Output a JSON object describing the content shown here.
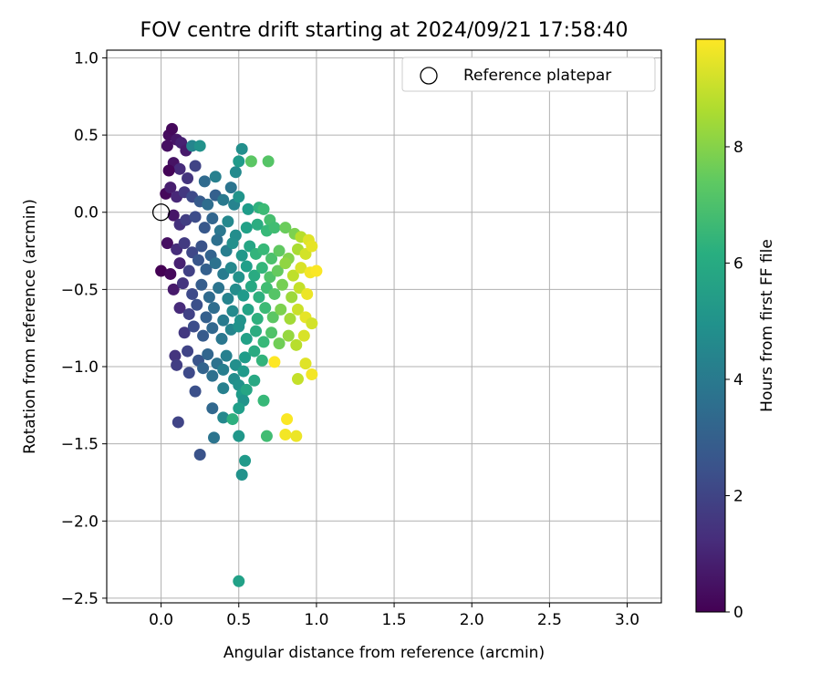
{
  "chart_data": {
    "type": "scatter",
    "title": "FOV centre drift starting at 2024/09/21 17:58:40",
    "xlabel": "Angular distance from reference (arcmin)",
    "ylabel": "Rotation from reference (arcmin)",
    "xlim": [
      -0.35,
      3.22
    ],
    "ylim": [
      -2.53,
      1.05
    ],
    "xticks": [
      "0.0",
      "0.5",
      "1.0",
      "1.5",
      "2.0",
      "2.5",
      "3.0"
    ],
    "yticks": [
      "1.0",
      "0.5",
      "0.0",
      "−0.5",
      "−1.0",
      "−1.5",
      "−2.0",
      "−2.5"
    ],
    "grid": true,
    "legend": {
      "position": "top-right",
      "entries": [
        "Reference platepar"
      ]
    },
    "reference_point": {
      "x": 0.0,
      "y": 0.0,
      "marker": "open-circle"
    },
    "colorbar": {
      "label": "Hours from first FF file",
      "range": [
        0,
        9.85
      ],
      "ticks": [
        "0",
        "2",
        "4",
        "6",
        "8"
      ],
      "colormap": "viridis"
    },
    "points": [
      [
        0.05,
        0.5,
        0.3
      ],
      [
        0.07,
        0.54,
        0.2
      ],
      [
        0.1,
        0.47,
        0.6
      ],
      [
        0.04,
        0.43,
        0.4
      ],
      [
        0.13,
        0.45,
        0.9
      ],
      [
        0.16,
        0.4,
        0.7
      ],
      [
        0.2,
        0.43,
        4.5
      ],
      [
        0.25,
        0.43,
        5.0
      ],
      [
        0.08,
        0.32,
        0.5
      ],
      [
        0.12,
        0.28,
        1.2
      ],
      [
        0.05,
        0.27,
        0.1
      ],
      [
        0.17,
        0.22,
        1.5
      ],
      [
        0.22,
        0.3,
        2.0
      ],
      [
        0.28,
        0.2,
        3.4
      ],
      [
        0.35,
        0.23,
        4.3
      ],
      [
        0.45,
        0.16,
        3.8
      ],
      [
        0.48,
        0.26,
        4.7
      ],
      [
        0.5,
        0.33,
        5.3
      ],
      [
        0.52,
        0.41,
        4.9
      ],
      [
        0.58,
        0.33,
        7.3
      ],
      [
        0.69,
        0.33,
        7.2
      ],
      [
        0.03,
        0.12,
        0.2
      ],
      [
        0.06,
        0.16,
        0.8
      ],
      [
        0.1,
        0.1,
        1.1
      ],
      [
        0.15,
        0.13,
        1.6
      ],
      [
        0.2,
        0.1,
        2.2
      ],
      [
        0.25,
        0.07,
        2.8
      ],
      [
        0.3,
        0.05,
        3.5
      ],
      [
        0.35,
        0.11,
        3.0
      ],
      [
        0.4,
        0.08,
        4.0
      ],
      [
        0.47,
        0.05,
        4.4
      ],
      [
        0.5,
        0.1,
        5.1
      ],
      [
        0.56,
        0.02,
        5.4
      ],
      [
        0.63,
        0.03,
        6.3
      ],
      [
        0.66,
        0.02,
        6.7
      ],
      [
        0.7,
        -0.05,
        6.9
      ],
      [
        0.08,
        -0.02,
        0.6
      ],
      [
        0.12,
        -0.08,
        1.4
      ],
      [
        0.16,
        -0.05,
        1.8
      ],
      [
        0.22,
        -0.03,
        2.3
      ],
      [
        0.28,
        -0.1,
        2.7
      ],
      [
        0.33,
        -0.04,
        3.2
      ],
      [
        0.38,
        -0.12,
        3.9
      ],
      [
        0.43,
        -0.06,
        4.6
      ],
      [
        0.48,
        -0.15,
        4.8
      ],
      [
        0.55,
        -0.1,
        5.6
      ],
      [
        0.62,
        -0.08,
        6.1
      ],
      [
        0.68,
        -0.12,
        6.6
      ],
      [
        0.73,
        -0.1,
        6.8
      ],
      [
        0.8,
        -0.1,
        7.6
      ],
      [
        0.86,
        -0.14,
        7.9
      ],
      [
        0.9,
        -0.16,
        8.8
      ],
      [
        0.95,
        -0.18,
        9.4
      ],
      [
        0.04,
        -0.2,
        0.4
      ],
      [
        0.1,
        -0.24,
        1.3
      ],
      [
        0.15,
        -0.2,
        1.7
      ],
      [
        0.2,
        -0.26,
        2.1
      ],
      [
        0.26,
        -0.22,
        2.5
      ],
      [
        0.32,
        -0.28,
        3.1
      ],
      [
        0.36,
        -0.18,
        3.6
      ],
      [
        0.42,
        -0.25,
        4.2
      ],
      [
        0.46,
        -0.2,
        4.9
      ],
      [
        0.52,
        -0.28,
        5.2
      ],
      [
        0.57,
        -0.22,
        5.8
      ],
      [
        0.61,
        -0.27,
        6.4
      ],
      [
        0.66,
        -0.24,
        6.6
      ],
      [
        0.71,
        -0.3,
        7.0
      ],
      [
        0.76,
        -0.25,
        7.4
      ],
      [
        0.82,
        -0.3,
        8.0
      ],
      [
        0.88,
        -0.24,
        8.6
      ],
      [
        0.93,
        -0.27,
        9.2
      ],
      [
        0.97,
        -0.22,
        9.5
      ],
      [
        0.0,
        -0.38,
        0.0
      ],
      [
        0.06,
        -0.4,
        0.2
      ],
      [
        0.12,
        -0.33,
        0.9
      ],
      [
        0.18,
        -0.38,
        1.9
      ],
      [
        0.24,
        -0.31,
        2.6
      ],
      [
        0.29,
        -0.37,
        3.0
      ],
      [
        0.35,
        -0.33,
        3.7
      ],
      [
        0.4,
        -0.4,
        4.1
      ],
      [
        0.45,
        -0.36,
        4.6
      ],
      [
        0.5,
        -0.42,
        5.0
      ],
      [
        0.55,
        -0.35,
        5.5
      ],
      [
        0.6,
        -0.41,
        6.0
      ],
      [
        0.65,
        -0.36,
        6.5
      ],
      [
        0.7,
        -0.42,
        7.1
      ],
      [
        0.75,
        -0.38,
        7.5
      ],
      [
        0.8,
        -0.33,
        8.2
      ],
      [
        0.85,
        -0.41,
        8.9
      ],
      [
        0.9,
        -0.36,
        9.3
      ],
      [
        0.96,
        -0.39,
        9.7
      ],
      [
        1.0,
        -0.38,
        9.8
      ],
      [
        0.08,
        -0.5,
        0.7
      ],
      [
        0.14,
        -0.46,
        1.5
      ],
      [
        0.2,
        -0.53,
        2.2
      ],
      [
        0.26,
        -0.47,
        2.9
      ],
      [
        0.31,
        -0.55,
        3.4
      ],
      [
        0.37,
        -0.49,
        3.8
      ],
      [
        0.43,
        -0.56,
        4.4
      ],
      [
        0.48,
        -0.5,
        4.8
      ],
      [
        0.53,
        -0.54,
        5.3
      ],
      [
        0.58,
        -0.48,
        5.9
      ],
      [
        0.63,
        -0.55,
        6.2
      ],
      [
        0.68,
        -0.49,
        6.8
      ],
      [
        0.73,
        -0.53,
        7.2
      ],
      [
        0.78,
        -0.47,
        7.8
      ],
      [
        0.84,
        -0.55,
        8.4
      ],
      [
        0.89,
        -0.49,
        9.0
      ],
      [
        0.94,
        -0.53,
        9.6
      ],
      [
        0.12,
        -0.62,
        1.2
      ],
      [
        0.18,
        -0.66,
        1.9
      ],
      [
        0.23,
        -0.6,
        2.4
      ],
      [
        0.29,
        -0.68,
        3.0
      ],
      [
        0.34,
        -0.62,
        3.5
      ],
      [
        0.4,
        -0.7,
        4.1
      ],
      [
        0.46,
        -0.64,
        4.7
      ],
      [
        0.51,
        -0.7,
        5.1
      ],
      [
        0.56,
        -0.63,
        5.7
      ],
      [
        0.62,
        -0.69,
        6.2
      ],
      [
        0.67,
        -0.62,
        6.7
      ],
      [
        0.72,
        -0.68,
        7.3
      ],
      [
        0.77,
        -0.63,
        7.9
      ],
      [
        0.83,
        -0.69,
        8.5
      ],
      [
        0.88,
        -0.63,
        9.1
      ],
      [
        0.93,
        -0.68,
        9.5
      ],
      [
        0.97,
        -0.72,
        9.2
      ],
      [
        0.15,
        -0.78,
        1.6
      ],
      [
        0.21,
        -0.74,
        2.3
      ],
      [
        0.27,
        -0.8,
        2.8
      ],
      [
        0.33,
        -0.75,
        3.3
      ],
      [
        0.39,
        -0.82,
        3.9
      ],
      [
        0.45,
        -0.76,
        4.5
      ],
      [
        0.5,
        -0.74,
        5.0
      ],
      [
        0.55,
        -0.82,
        5.6
      ],
      [
        0.61,
        -0.77,
        6.1
      ],
      [
        0.66,
        -0.84,
        6.6
      ],
      [
        0.71,
        -0.78,
        7.1
      ],
      [
        0.76,
        -0.85,
        7.7
      ],
      [
        0.82,
        -0.8,
        8.3
      ],
      [
        0.87,
        -0.86,
        8.8
      ],
      [
        0.92,
        -0.8,
        9.3
      ],
      [
        0.09,
        -0.93,
        1.5
      ],
      [
        0.17,
        -0.9,
        2.0
      ],
      [
        0.24,
        -0.96,
        2.6
      ],
      [
        0.3,
        -0.92,
        3.2
      ],
      [
        0.36,
        -0.98,
        3.7
      ],
      [
        0.42,
        -0.93,
        4.3
      ],
      [
        0.48,
        -0.99,
        4.9
      ],
      [
        0.54,
        -0.94,
        5.4
      ],
      [
        0.6,
        -0.9,
        6.0
      ],
      [
        0.65,
        -0.96,
        6.4
      ],
      [
        0.1,
        -0.99,
        1.8
      ],
      [
        0.18,
        -1.04,
        2.2
      ],
      [
        0.27,
        -1.01,
        3.1
      ],
      [
        0.33,
        -1.06,
        3.6
      ],
      [
        0.4,
        -1.02,
        4.2
      ],
      [
        0.47,
        -1.08,
        4.8
      ],
      [
        0.53,
        -1.03,
        5.3
      ],
      [
        0.6,
        -1.09,
        5.9
      ],
      [
        0.73,
        -0.97,
        9.9
      ],
      [
        0.88,
        -1.08,
        9.0
      ],
      [
        0.93,
        -0.98,
        9.4
      ],
      [
        0.97,
        -1.05,
        9.7
      ],
      [
        0.22,
        -1.16,
        2.4
      ],
      [
        0.4,
        -1.14,
        4.3
      ],
      [
        0.5,
        -1.12,
        5.0
      ],
      [
        0.52,
        -1.18,
        5.4
      ],
      [
        0.55,
        -1.15,
        5.8
      ],
      [
        0.66,
        -1.22,
        6.6
      ],
      [
        0.33,
        -1.27,
        3.3
      ],
      [
        0.53,
        -1.22,
        5.1
      ],
      [
        0.11,
        -1.36,
        2.0
      ],
      [
        0.4,
        -1.33,
        4.6
      ],
      [
        0.46,
        -1.34,
        6.2
      ],
      [
        0.5,
        -1.27,
        5.5
      ],
      [
        0.34,
        -1.46,
        3.8
      ],
      [
        0.5,
        -1.45,
        5.2
      ],
      [
        0.68,
        -1.45,
        6.8
      ],
      [
        0.8,
        -1.44,
        9.7
      ],
      [
        0.81,
        -1.34,
        9.8
      ],
      [
        0.87,
        -1.45,
        9.6
      ],
      [
        0.25,
        -1.57,
        2.5
      ],
      [
        0.54,
        -1.61,
        5.3
      ],
      [
        0.52,
        -1.7,
        5.0
      ],
      [
        0.5,
        -2.39,
        5.6
      ]
    ]
  }
}
